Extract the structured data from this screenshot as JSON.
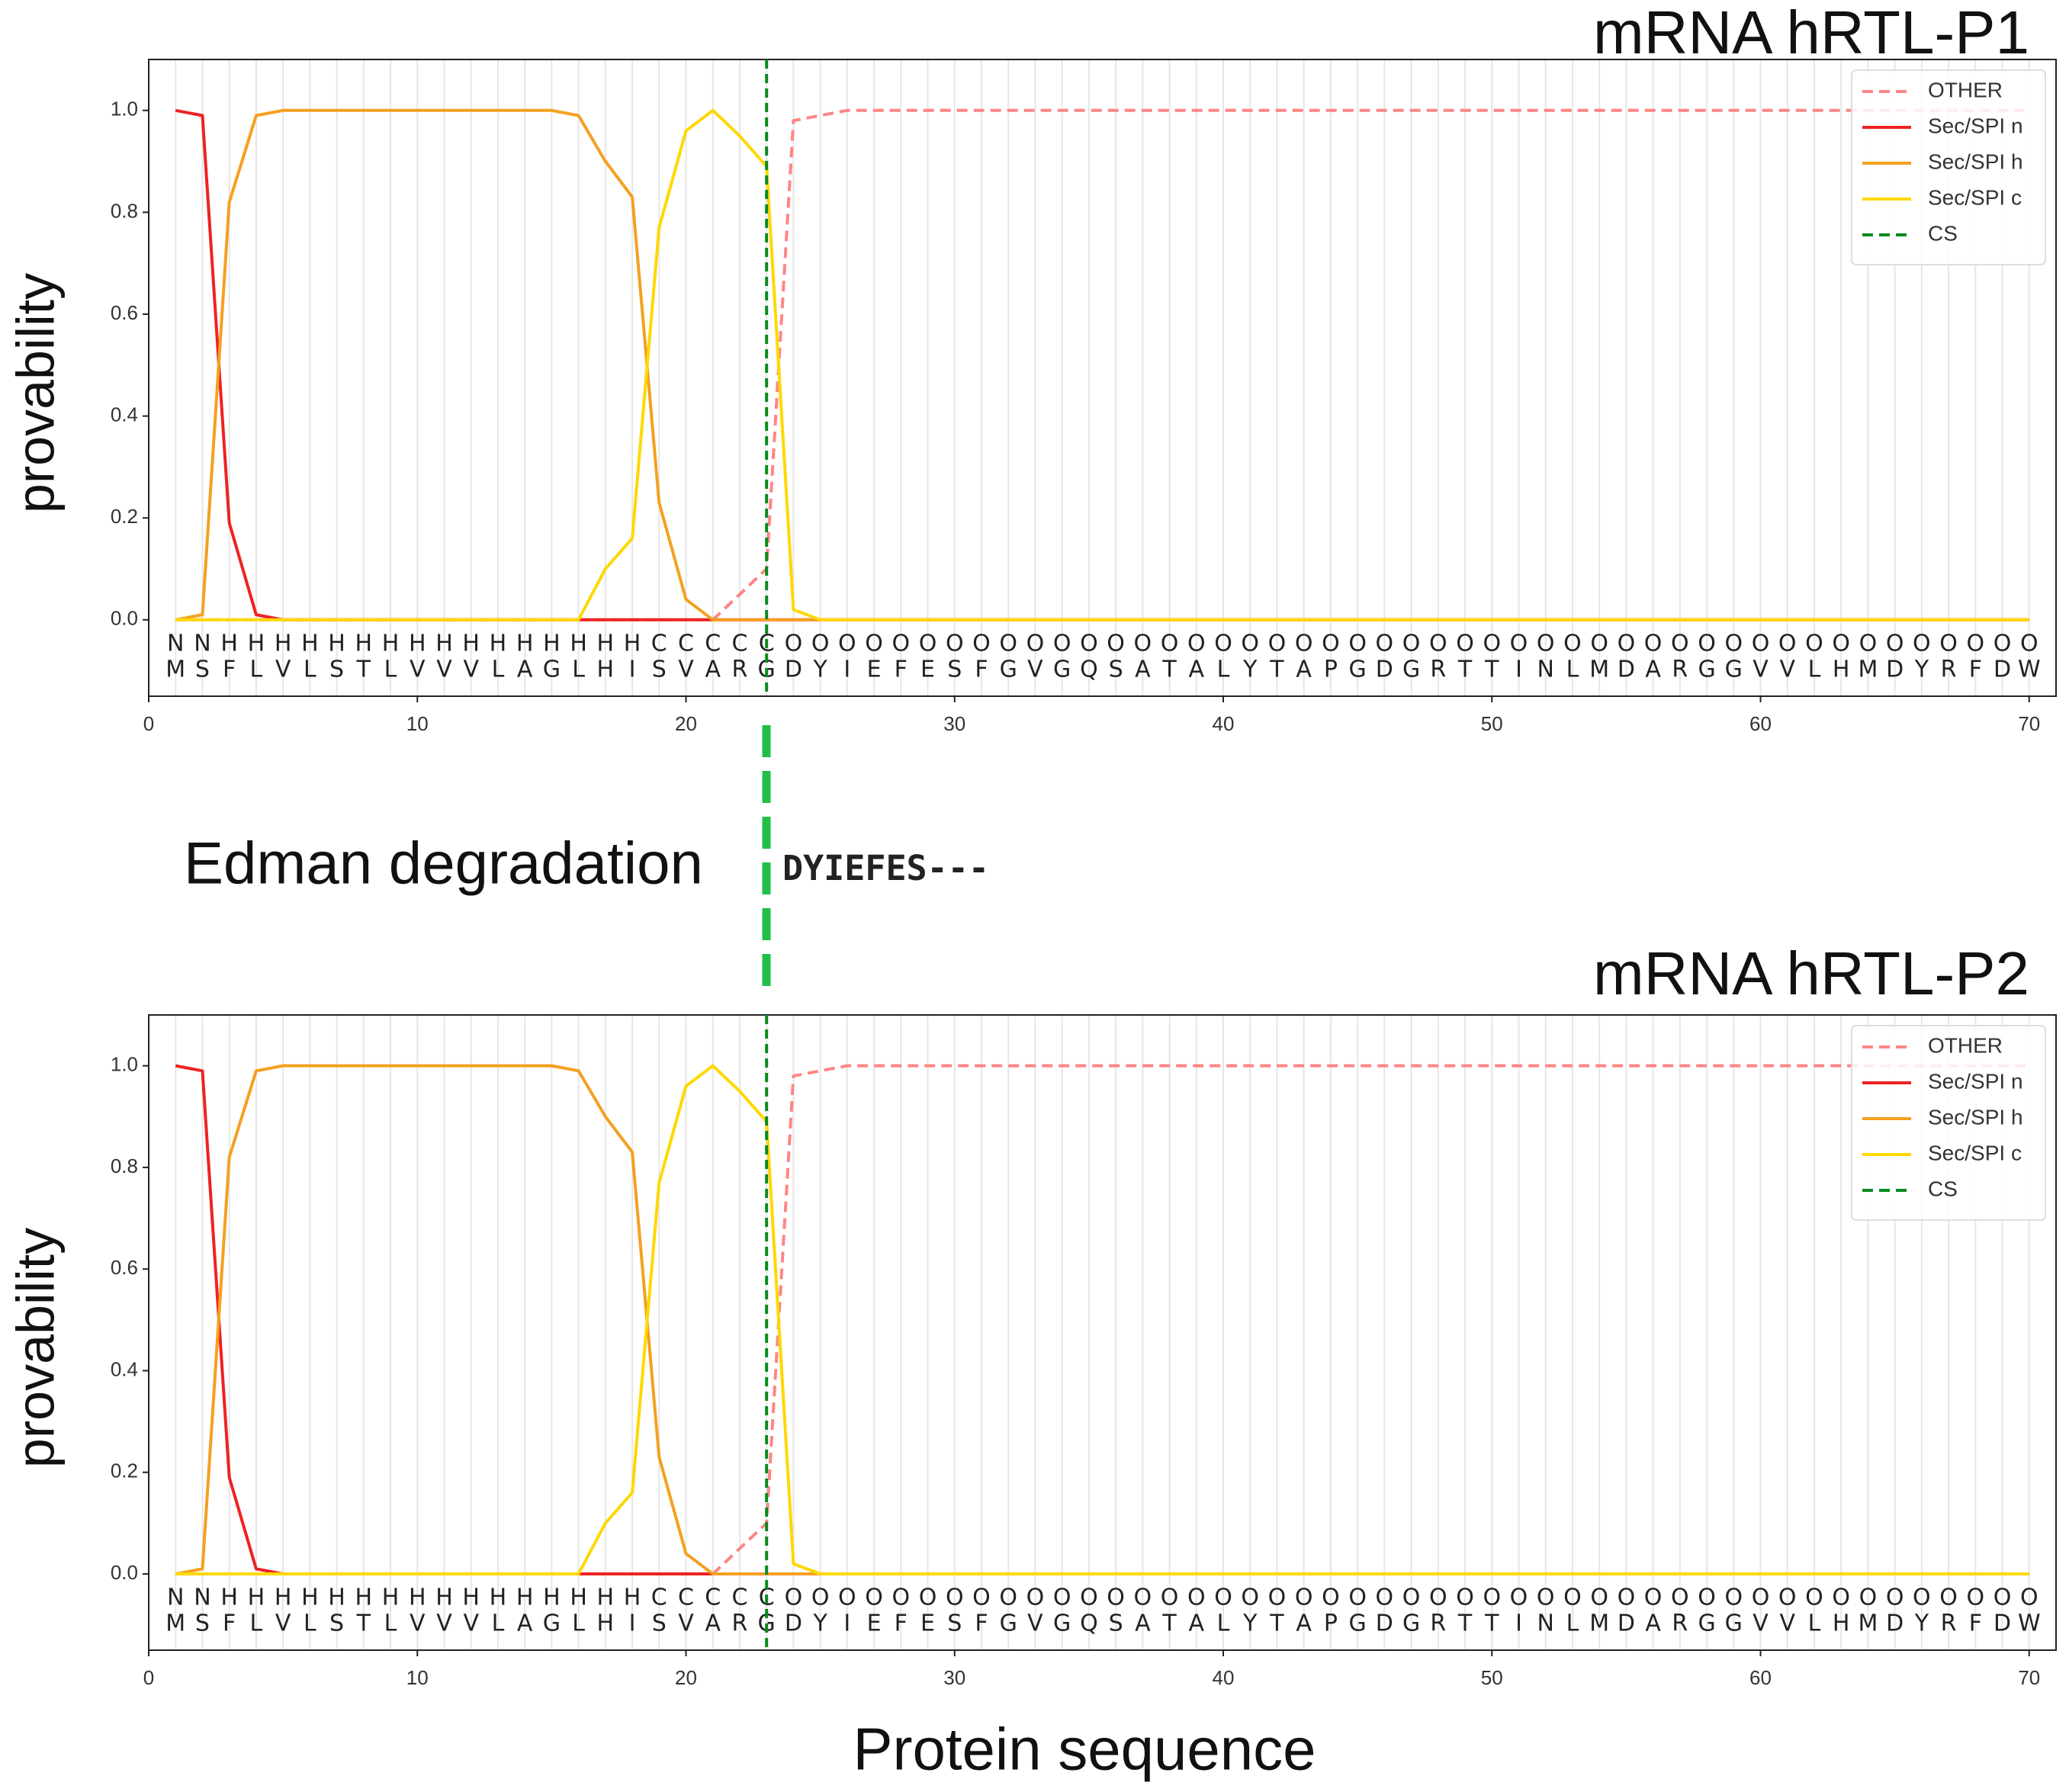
{
  "chart_data": [
    {
      "type": "line",
      "title": "mRNA hRTL-P1",
      "ylabel": "provability",
      "x": [
        1,
        2,
        3,
        4,
        5,
        6,
        7,
        8,
        9,
        10,
        11,
        12,
        13,
        14,
        15,
        16,
        17,
        18,
        19,
        20,
        21,
        22,
        23,
        24,
        25,
        26,
        27,
        28,
        29,
        30,
        31,
        32,
        33,
        34,
        35,
        36,
        37,
        38,
        39,
        40,
        41,
        42,
        43,
        44,
        45,
        46,
        47,
        48,
        49,
        50,
        51,
        52,
        53,
        54,
        55,
        56,
        57,
        58,
        59,
        60,
        61,
        62,
        63,
        64,
        65,
        66,
        67,
        68,
        69,
        70
      ],
      "regions": [
        "N",
        "N",
        "H",
        "H",
        "H",
        "H",
        "H",
        "H",
        "H",
        "H",
        "H",
        "H",
        "H",
        "H",
        "H",
        "H",
        "H",
        "H",
        "C",
        "C",
        "C",
        "C",
        "C",
        "O",
        "O",
        "O",
        "O",
        "O",
        "O",
        "O",
        "O",
        "O",
        "O",
        "O",
        "O",
        "O",
        "O",
        "O",
        "O",
        "O",
        "O",
        "O",
        "O",
        "O",
        "O",
        "O",
        "O",
        "O",
        "O",
        "O",
        "O",
        "O",
        "O",
        "O",
        "O",
        "O",
        "O",
        "O",
        "O",
        "O",
        "O",
        "O",
        "O",
        "O",
        "O",
        "O",
        "O",
        "O",
        "O",
        "O"
      ],
      "residues": [
        "M",
        "S",
        "F",
        "L",
        "V",
        "L",
        "S",
        "T",
        "L",
        "V",
        "V",
        "V",
        "L",
        "A",
        "G",
        "L",
        "H",
        "I",
        "S",
        "V",
        "A",
        "R",
        "G",
        "D",
        "Y",
        "I",
        "E",
        "F",
        "E",
        "S",
        "F",
        "G",
        "V",
        "G",
        "Q",
        "S",
        "A",
        "T",
        "A",
        "L",
        "Y",
        "T",
        "A",
        "P",
        "G",
        "D",
        "G",
        "R",
        "T",
        "T",
        "I",
        "N",
        "L",
        "M",
        "D",
        "A",
        "R",
        "G",
        "G",
        "V",
        "V",
        "L",
        "H",
        "M",
        "D",
        "Y",
        "R",
        "F",
        "D",
        "W"
      ],
      "region_colors": {
        "N": "#ee2222",
        "H": "#f5a020",
        "C": "#f2cc00",
        "O": "#888888"
      },
      "series": [
        {
          "name": "OTHER",
          "color": "#ff8585",
          "linestyle": "dashed",
          "values": [
            0,
            0,
            0,
            0,
            0,
            0,
            0,
            0,
            0,
            0,
            0,
            0,
            0,
            0,
            0,
            0,
            0,
            0,
            0,
            0,
            0,
            0.05,
            0.1,
            0.98,
            0.99,
            1,
            1,
            1,
            1,
            1,
            1,
            1,
            1,
            1,
            1,
            1,
            1,
            1,
            1,
            1,
            1,
            1,
            1,
            1,
            1,
            1,
            1,
            1,
            1,
            1,
            1,
            1,
            1,
            1,
            1,
            1,
            1,
            1,
            1,
            1,
            1,
            1,
            1,
            1,
            1,
            1,
            1,
            1,
            1,
            1
          ]
        },
        {
          "name": "Sec/SPI n",
          "color": "#ee2222",
          "linestyle": "solid",
          "values": [
            1,
            0.99,
            0.19,
            0.01,
            0,
            0,
            0,
            0,
            0,
            0,
            0,
            0,
            0,
            0,
            0,
            0,
            0,
            0,
            0,
            0,
            0,
            0,
            0,
            0,
            0,
            0,
            0,
            0,
            0,
            0,
            0,
            0,
            0,
            0,
            0,
            0,
            0,
            0,
            0,
            0,
            0,
            0,
            0,
            0,
            0,
            0,
            0,
            0,
            0,
            0,
            0,
            0,
            0,
            0,
            0,
            0,
            0,
            0,
            0,
            0,
            0,
            0,
            0,
            0,
            0,
            0,
            0,
            0,
            0,
            0
          ]
        },
        {
          "name": "Sec/SPI h",
          "color": "#f5a020",
          "linestyle": "solid",
          "values": [
            0,
            0.01,
            0.82,
            0.99,
            1,
            1,
            1,
            1,
            1,
            1,
            1,
            1,
            1,
            1,
            1,
            0.99,
            0.9,
            0.83,
            0.23,
            0.04,
            0,
            0,
            0,
            0,
            0,
            0,
            0,
            0,
            0,
            0,
            0,
            0,
            0,
            0,
            0,
            0,
            0,
            0,
            0,
            0,
            0,
            0,
            0,
            0,
            0,
            0,
            0,
            0,
            0,
            0,
            0,
            0,
            0,
            0,
            0,
            0,
            0,
            0,
            0,
            0,
            0,
            0,
            0,
            0,
            0,
            0,
            0,
            0,
            0,
            0
          ]
        },
        {
          "name": "Sec/SPI c",
          "color": "#ffd800",
          "linestyle": "solid",
          "values": [
            0,
            0,
            0,
            0,
            0,
            0,
            0,
            0,
            0,
            0,
            0,
            0,
            0,
            0,
            0,
            0,
            0.1,
            0.16,
            0.77,
            0.96,
            1,
            0.95,
            0.89,
            0.02,
            0,
            0,
            0,
            0,
            0,
            0,
            0,
            0,
            0,
            0,
            0,
            0,
            0,
            0,
            0,
            0,
            0,
            0,
            0,
            0,
            0,
            0,
            0,
            0,
            0,
            0,
            0,
            0,
            0,
            0,
            0,
            0,
            0,
            0,
            0,
            0,
            0,
            0,
            0,
            0,
            0,
            0,
            0,
            0,
            0,
            0
          ]
        }
      ],
      "cleavage_site": {
        "name": "CS",
        "color": "#0a8a1e",
        "x": 23
      },
      "xlim": [
        0,
        71
      ],
      "ylim": [
        -0.15,
        1.1
      ],
      "xticks": [
        0,
        10,
        20,
        30,
        40,
        50,
        60,
        70
      ],
      "yticks": [
        {
          "value": 0,
          "label": "0.0"
        },
        0.2,
        0.4,
        0.6,
        0.8,
        {
          "value": 1,
          "label": "1.0"
        }
      ],
      "grid": true,
      "legend": "upper right"
    },
    {
      "type": "line",
      "title": "mRNA hRTL-P2",
      "ylabel": "provability",
      "xlabel": "Protein sequence",
      "x": [
        1,
        2,
        3,
        4,
        5,
        6,
        7,
        8,
        9,
        10,
        11,
        12,
        13,
        14,
        15,
        16,
        17,
        18,
        19,
        20,
        21,
        22,
        23,
        24,
        25,
        26,
        27,
        28,
        29,
        30,
        31,
        32,
        33,
        34,
        35,
        36,
        37,
        38,
        39,
        40,
        41,
        42,
        43,
        44,
        45,
        46,
        47,
        48,
        49,
        50,
        51,
        52,
        53,
        54,
        55,
        56,
        57,
        58,
        59,
        60,
        61,
        62,
        63,
        64,
        65,
        66,
        67,
        68,
        69,
        70
      ],
      "regions": [
        "N",
        "N",
        "H",
        "H",
        "H",
        "H",
        "H",
        "H",
        "H",
        "H",
        "H",
        "H",
        "H",
        "H",
        "H",
        "H",
        "H",
        "H",
        "C",
        "C",
        "C",
        "C",
        "C",
        "O",
        "O",
        "O",
        "O",
        "O",
        "O",
        "O",
        "O",
        "O",
        "O",
        "O",
        "O",
        "O",
        "O",
        "O",
        "O",
        "O",
        "O",
        "O",
        "O",
        "O",
        "O",
        "O",
        "O",
        "O",
        "O",
        "O",
        "O",
        "O",
        "O",
        "O",
        "O",
        "O",
        "O",
        "O",
        "O",
        "O",
        "O",
        "O",
        "O",
        "O",
        "O",
        "O",
        "O",
        "O",
        "O",
        "O"
      ],
      "residues": [
        "M",
        "S",
        "F",
        "L",
        "V",
        "L",
        "S",
        "T",
        "L",
        "V",
        "V",
        "V",
        "L",
        "A",
        "G",
        "L",
        "H",
        "I",
        "S",
        "V",
        "A",
        "R",
        "G",
        "D",
        "Y",
        "I",
        "E",
        "F",
        "E",
        "S",
        "F",
        "G",
        "V",
        "G",
        "Q",
        "S",
        "A",
        "T",
        "A",
        "L",
        "Y",
        "T",
        "A",
        "P",
        "G",
        "D",
        "G",
        "R",
        "T",
        "T",
        "I",
        "N",
        "L",
        "M",
        "D",
        "A",
        "R",
        "G",
        "G",
        "V",
        "V",
        "L",
        "H",
        "M",
        "D",
        "Y",
        "R",
        "F",
        "D",
        "W"
      ],
      "region_colors": {
        "N": "#ee2222",
        "H": "#f5a020",
        "C": "#f2cc00",
        "O": "#888888"
      },
      "series": [
        {
          "name": "OTHER",
          "color": "#ff8585",
          "linestyle": "dashed",
          "values": [
            0,
            0,
            0,
            0,
            0,
            0,
            0,
            0,
            0,
            0,
            0,
            0,
            0,
            0,
            0,
            0,
            0,
            0,
            0,
            0,
            0,
            0.05,
            0.1,
            0.98,
            0.99,
            1,
            1,
            1,
            1,
            1,
            1,
            1,
            1,
            1,
            1,
            1,
            1,
            1,
            1,
            1,
            1,
            1,
            1,
            1,
            1,
            1,
            1,
            1,
            1,
            1,
            1,
            1,
            1,
            1,
            1,
            1,
            1,
            1,
            1,
            1,
            1,
            1,
            1,
            1,
            1,
            1,
            1,
            1,
            1,
            1
          ]
        },
        {
          "name": "Sec/SPI n",
          "color": "#ee2222",
          "linestyle": "solid",
          "values": [
            1,
            0.99,
            0.19,
            0.01,
            0,
            0,
            0,
            0,
            0,
            0,
            0,
            0,
            0,
            0,
            0,
            0,
            0,
            0,
            0,
            0,
            0,
            0,
            0,
            0,
            0,
            0,
            0,
            0,
            0,
            0,
            0,
            0,
            0,
            0,
            0,
            0,
            0,
            0,
            0,
            0,
            0,
            0,
            0,
            0,
            0,
            0,
            0,
            0,
            0,
            0,
            0,
            0,
            0,
            0,
            0,
            0,
            0,
            0,
            0,
            0,
            0,
            0,
            0,
            0,
            0,
            0,
            0,
            0,
            0,
            0
          ]
        },
        {
          "name": "Sec/SPI h",
          "color": "#f5a020",
          "linestyle": "solid",
          "values": [
            0,
            0.01,
            0.82,
            0.99,
            1,
            1,
            1,
            1,
            1,
            1,
            1,
            1,
            1,
            1,
            1,
            0.99,
            0.9,
            0.83,
            0.23,
            0.04,
            0,
            0,
            0,
            0,
            0,
            0,
            0,
            0,
            0,
            0,
            0,
            0,
            0,
            0,
            0,
            0,
            0,
            0,
            0,
            0,
            0,
            0,
            0,
            0,
            0,
            0,
            0,
            0,
            0,
            0,
            0,
            0,
            0,
            0,
            0,
            0,
            0,
            0,
            0,
            0,
            0,
            0,
            0,
            0,
            0,
            0,
            0,
            0,
            0,
            0
          ]
        },
        {
          "name": "Sec/SPI c",
          "color": "#ffd800",
          "linestyle": "solid",
          "values": [
            0,
            0,
            0,
            0,
            0,
            0,
            0,
            0,
            0,
            0,
            0,
            0,
            0,
            0,
            0,
            0,
            0.1,
            0.16,
            0.77,
            0.96,
            1,
            0.95,
            0.89,
            0.02,
            0,
            0,
            0,
            0,
            0,
            0,
            0,
            0,
            0,
            0,
            0,
            0,
            0,
            0,
            0,
            0,
            0,
            0,
            0,
            0,
            0,
            0,
            0,
            0,
            0,
            0,
            0,
            0,
            0,
            0,
            0,
            0,
            0,
            0,
            0,
            0,
            0,
            0,
            0,
            0,
            0,
            0,
            0,
            0,
            0,
            0
          ]
        }
      ],
      "cleavage_site": {
        "name": "CS",
        "color": "#0a8a1e",
        "x": 23
      },
      "xlim": [
        0,
        71
      ],
      "ylim": [
        -0.15,
        1.1
      ],
      "xticks": [
        0,
        10,
        20,
        30,
        40,
        50,
        60,
        70
      ],
      "yticks": [
        {
          "value": 0,
          "label": "0.0"
        },
        0.2,
        0.4,
        0.6,
        0.8,
        {
          "value": 1,
          "label": "1.0"
        }
      ],
      "grid": true,
      "legend": "upper right"
    }
  ],
  "annotation": {
    "text": "Edman degradation",
    "sequence": "DYIEFES---"
  }
}
